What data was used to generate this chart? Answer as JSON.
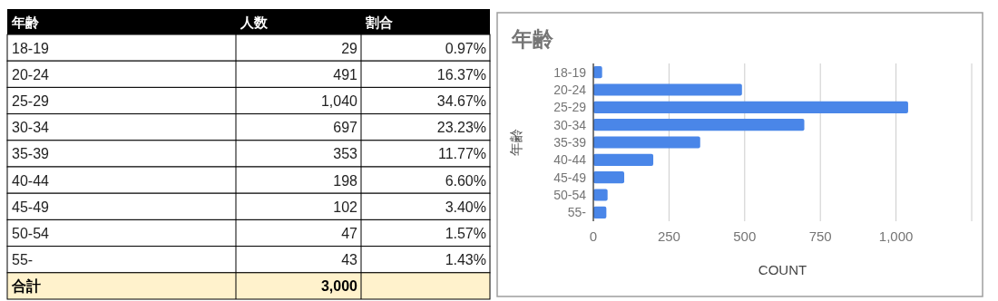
{
  "chart_data": [
    {
      "type": "other",
      "title": "年齢",
      "categories": [
        "18-19",
        "20-24",
        "25-29",
        "30-34",
        "35-39",
        "40-44",
        "45-49",
        "50-54",
        "55-"
      ],
      "series": [
        {
          "name": "人数",
          "values": [
            29,
            491,
            1040,
            697,
            353,
            198,
            102,
            47,
            43
          ],
          "value_labels": [
            "29",
            "491",
            "1,040",
            "697",
            "353",
            "198",
            "102",
            "47",
            "43"
          ]
        },
        {
          "name": "割合",
          "values": [
            0.97,
            16.37,
            34.67,
            23.23,
            11.77,
            6.6,
            3.4,
            1.57,
            1.43
          ],
          "value_labels": [
            "0.97%",
            "16.37%",
            "34.67%",
            "23.23%",
            "11.77%",
            "6.60%",
            "3.40%",
            "1.57%",
            "1.43%"
          ]
        }
      ],
      "totals": [
        "合計",
        "3,000"
      ]
    },
    {
      "type": "bar",
      "orientation": "horizontal",
      "title": "年齢",
      "ylabel": "年齢",
      "xlabel": "COUNT",
      "categories": [
        "18-19",
        "20-24",
        "25-29",
        "30-34",
        "35-39",
        "40-44",
        "45-49",
        "50-54",
        "55-"
      ],
      "values": [
        29,
        491,
        1040,
        697,
        353,
        198,
        102,
        47,
        43
      ],
      "color": "#4a86e8",
      "xlim": [
        0,
        1250
      ],
      "xticks": [
        0,
        250,
        500,
        750,
        {
          "value": 1000,
          "label": "1,000"
        },
        {
          "value": 1250,
          "label": null
        }
      ],
      "grid": "x"
    }
  ]
}
